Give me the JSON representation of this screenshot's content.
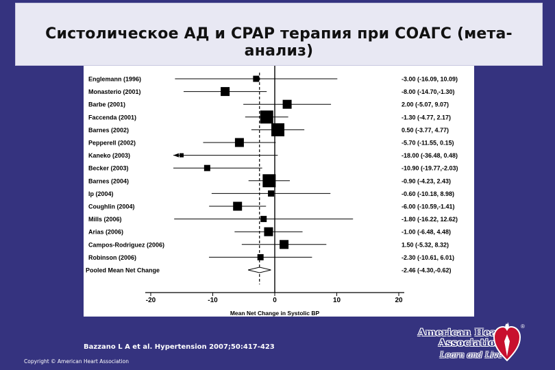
{
  "title": "Систолическое АД и CPAP терапия при СОАГС (мета-анализ)",
  "citation": "Bazzano L A et al. Hypertension 2007;50:417-423",
  "copyright": "Copyright © American Heart Association",
  "logo": {
    "name_line1": "American Heart",
    "name_line2": "Association",
    "tagline": "Learn and Live",
    "registered": "®",
    "heart_color": "#c8102e"
  },
  "chart_data": {
    "type": "forest",
    "xlabel": "Mean Net Change in Systolic BP",
    "xlim": [
      -20,
      20
    ],
    "xticks": [
      -20,
      -10,
      0,
      10,
      20
    ],
    "reference_line": 0,
    "pooled_line": -2.46,
    "studies": [
      {
        "label": "Englemann (1996)",
        "mean": -3.0,
        "low": -16.09,
        "high": 10.09,
        "ci_text": "-3.00 (-16.09, 10.09)",
        "weight": "small"
      },
      {
        "label": "Monasterio (2001)",
        "mean": -8.0,
        "low": -14.7,
        "high": -1.3,
        "ci_text": "-8.00 (-14.70,-1.30)",
        "weight": "medium"
      },
      {
        "label": "Barbe (2001)",
        "mean": 2.0,
        "low": -5.07,
        "high": 9.07,
        "ci_text": "2.00 (-5.07, 9.07)",
        "weight": "medium"
      },
      {
        "label": "Faccenda (2001)",
        "mean": -1.3,
        "low": -4.77,
        "high": 2.17,
        "ci_text": "-1.30 (-4.77, 2.17)",
        "weight": "large"
      },
      {
        "label": "Barnes (2002)",
        "mean": 0.5,
        "low": -3.77,
        "high": 4.77,
        "ci_text": "0.50 (-3.77, 4.77)",
        "weight": "large"
      },
      {
        "label": "Pepperell (2002)",
        "mean": -5.7,
        "low": -11.55,
        "high": 0.15,
        "ci_text": "-5.70 (-11.55, 0.15)",
        "weight": "medium"
      },
      {
        "label": "Kaneko (2003)",
        "mean": -18.0,
        "low": -36.48,
        "high": 0.48,
        "ci_text": "-18.00 (-36.48, 0.48)",
        "weight": "tiny",
        "arrow_left": true
      },
      {
        "label": "Becker (2003)",
        "mean": -10.9,
        "low": -19.77,
        "high": -2.03,
        "ci_text": "-10.90 (-19.77,-2.03)",
        "weight": "small"
      },
      {
        "label": "Barnes (2004)",
        "mean": -0.9,
        "low": -4.23,
        "high": 2.43,
        "ci_text": "-0.90 (-4.23, 2.43)",
        "weight": "large"
      },
      {
        "label": "Ip (2004)",
        "mean": -0.6,
        "low": -10.18,
        "high": 8.98,
        "ci_text": "-0.60 (-10.18, 8.98)",
        "weight": "small"
      },
      {
        "label": "Coughlin (2004)",
        "mean": -6.0,
        "low": -10.59,
        "high": -1.41,
        "ci_text": "-6.00 (-10.59,-1.41)",
        "weight": "medium"
      },
      {
        "label": "Mills (2006)",
        "mean": -1.8,
        "low": -16.22,
        "high": 12.62,
        "ci_text": "-1.80 (-16.22, 12.62)",
        "weight": "small"
      },
      {
        "label": "Arias (2006)",
        "mean": -1.0,
        "low": -6.48,
        "high": 4.48,
        "ci_text": "-1.00 (-6.48, 4.48)",
        "weight": "medium"
      },
      {
        "label": "Campos-Rodriguez (2006)",
        "mean": 1.5,
        "low": -5.32,
        "high": 8.32,
        "ci_text": "1.50 (-5.32, 8.32)",
        "weight": "medium"
      },
      {
        "label": "Robinson (2006)",
        "mean": -2.3,
        "low": -10.61,
        "high": 6.01,
        "ci_text": "-2.30 (-10.61, 6.01)",
        "weight": "small"
      }
    ],
    "pooled": {
      "label": "Pooled Mean Net Change",
      "mean": -2.46,
      "low": -4.3,
      "high": -0.62,
      "ci_text": "-2.46 (-4.30,-0.62)"
    }
  }
}
